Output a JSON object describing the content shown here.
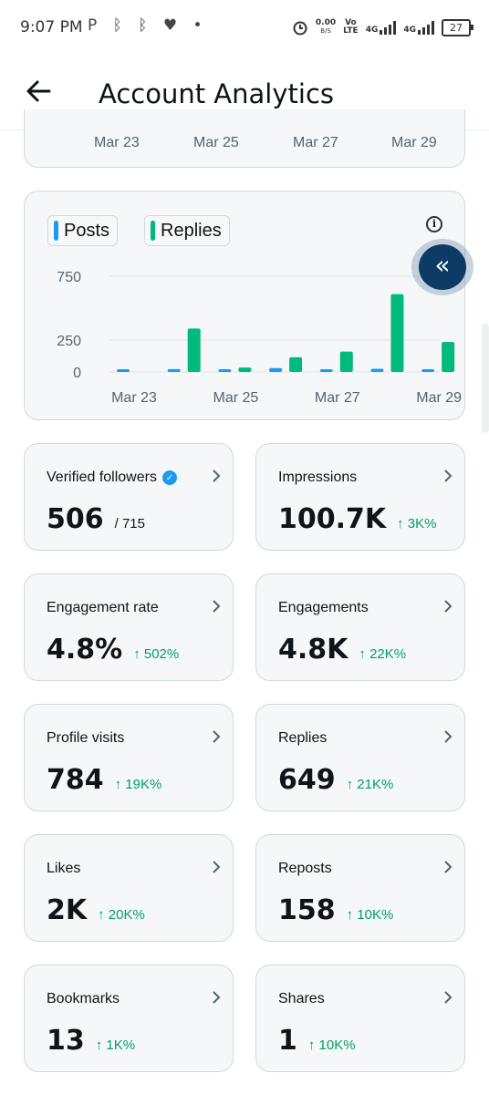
{
  "status_bar": {
    "time": "9:07 PM",
    "left_icons": "P ᛒ ᛒ ♥ •",
    "net_speed_value": "0.00",
    "net_speed_unit": "B/S",
    "vo_lte_top": "Vo",
    "vo_lte_bottom": "LTE",
    "sim1_label": "4G",
    "sim2_label": "4G",
    "battery": "27"
  },
  "header": {
    "title": "Account Analytics"
  },
  "top_card": {
    "x_labels": [
      "Mar 23",
      "Mar 25",
      "Mar 27",
      "Mar 29"
    ]
  },
  "chart_data": {
    "type": "bar",
    "categories": [
      "Mar 23",
      "Mar 24",
      "Mar 25",
      "Mar 26",
      "Mar 27",
      "Mar 28",
      "Mar 29"
    ],
    "x_tick_labels": [
      "Mar 23",
      "Mar 25",
      "Mar 27",
      "Mar 29"
    ],
    "y_tick_labels": [
      "750",
      "250",
      "0"
    ],
    "y_ticks": [
      750,
      250,
      0
    ],
    "ylim": [
      0,
      750
    ],
    "series": [
      {
        "name": "Posts",
        "color": "#1d9bf0",
        "values": [
          2,
          22,
          10,
          30,
          12,
          25,
          5
        ]
      },
      {
        "name": "Replies",
        "color": "#00ba7c",
        "values": [
          0,
          340,
          35,
          115,
          160,
          610,
          235
        ]
      }
    ],
    "grid": true,
    "legend": "top-left"
  },
  "stats": [
    {
      "label": "Verified followers",
      "value": "506",
      "total": "/ 715",
      "verified": true
    },
    {
      "label": "Impressions",
      "value": "100.7K",
      "delta": "↑ 3K%"
    },
    {
      "label": "Engagement rate",
      "value": "4.8%",
      "delta": "↑ 502%"
    },
    {
      "label": "Engagements",
      "value": "4.8K",
      "delta": "↑ 22K%"
    },
    {
      "label": "Profile visits",
      "value": "784",
      "delta": "↑ 19K%"
    },
    {
      "label": "Replies",
      "value": "649",
      "delta": "↑ 21K%"
    },
    {
      "label": "Likes",
      "value": "2K",
      "delta": "↑ 20K%"
    },
    {
      "label": "Reposts",
      "value": "158",
      "delta": "↑ 10K%"
    },
    {
      "label": "Bookmarks",
      "value": "13",
      "delta": "↑ 1K%"
    },
    {
      "label": "Shares",
      "value": "1",
      "delta": "↑ 10K%"
    }
  ],
  "colors": {
    "accent_blue": "#1d9bf0",
    "accent_green": "#00ba7c",
    "delta_green": "#00a067",
    "fab": "#0e3b66"
  },
  "icons": {
    "back": "arrow-left-icon",
    "info": "info-icon",
    "fab": "double-chevron-left-icon",
    "chevron": "chevron-right-icon",
    "verified": "verified-badge-icon"
  }
}
